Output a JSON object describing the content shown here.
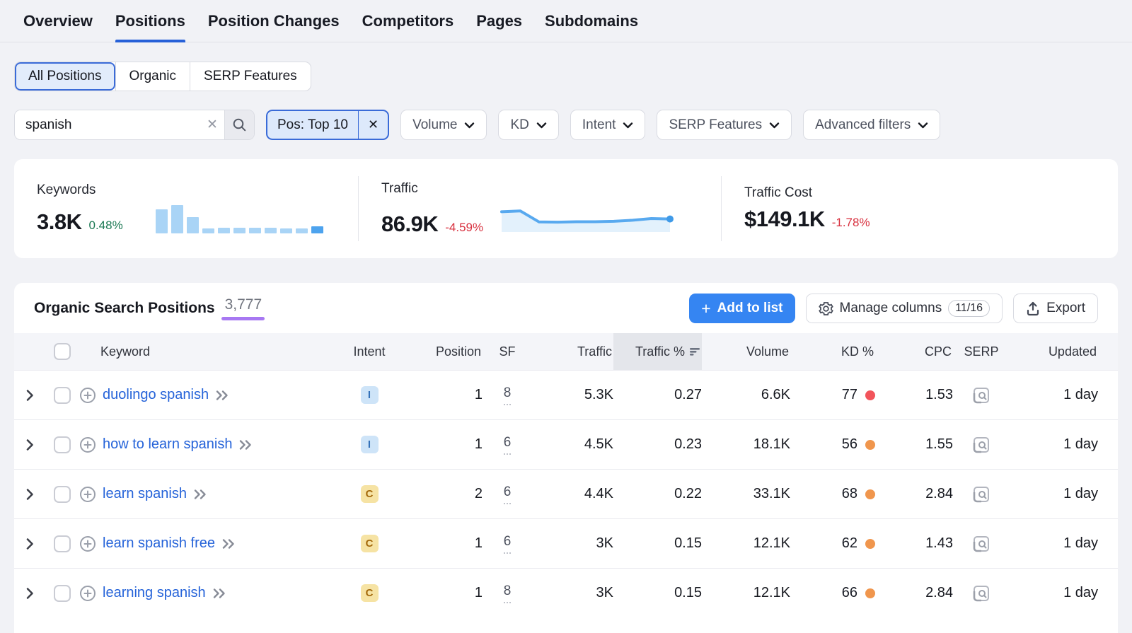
{
  "nav": {
    "tabs": [
      {
        "label": "Overview",
        "active": false
      },
      {
        "label": "Positions",
        "active": true
      },
      {
        "label": "Position Changes",
        "active": false
      },
      {
        "label": "Competitors",
        "active": false
      },
      {
        "label": "Pages",
        "active": false
      },
      {
        "label": "Subdomains",
        "active": false
      }
    ]
  },
  "segmented": {
    "selected": "All Positions",
    "options": [
      "All Positions",
      "Organic",
      "SERP Features"
    ]
  },
  "filters": {
    "search": {
      "value": "spanish"
    },
    "chip": {
      "label": "Pos: Top 10"
    },
    "dropdowns": [
      "Volume",
      "KD",
      "Intent",
      "SERP Features",
      "Advanced filters"
    ]
  },
  "stats": {
    "keywords": {
      "label": "Keywords",
      "value": "3.8K",
      "change": "0.48%",
      "direction": "up"
    },
    "traffic": {
      "label": "Traffic",
      "value": "86.9K",
      "change": "-4.59%",
      "direction": "down"
    },
    "traffic_cost": {
      "label": "Traffic Cost",
      "value": "$149.1K",
      "change": "-1.78%",
      "direction": "down"
    }
  },
  "chart_data": [
    {
      "id": "keywords-trend",
      "type": "bar",
      "values": [
        0.85,
        1.0,
        0.58,
        0.17,
        0.2,
        0.2,
        0.2,
        0.2,
        0.17,
        0.17,
        0.24
      ],
      "bar_color": "#a9d4f6",
      "last_bar_color": "#4da3ee",
      "title": "",
      "xlabel": "",
      "ylabel": "",
      "axes_shown": false
    },
    {
      "id": "traffic-trend",
      "type": "area",
      "values": [
        0.82,
        0.86,
        0.34,
        0.33,
        0.35,
        0.35,
        0.37,
        0.42,
        0.5,
        0.48
      ],
      "line_color": "#58a9ef",
      "fill_color": "#e3f1fc",
      "endpoint_dot": true,
      "title": "",
      "xlabel": "",
      "ylabel": "",
      "axes_shown": false
    }
  ],
  "table": {
    "title": "Organic Search Positions",
    "count": "3,777",
    "actions": {
      "add_to_list": "Add to list",
      "manage_columns": "Manage columns",
      "columns_badge": "11/16",
      "export": "Export"
    },
    "headers": [
      "Keyword",
      "Intent",
      "Position",
      "SF",
      "Traffic",
      "Traffic %",
      "Volume",
      "KD %",
      "CPC",
      "SERP",
      "Updated"
    ],
    "sorted_column": "Traffic %",
    "rows": [
      {
        "keyword": "duolingo spanish",
        "intent": {
          "label": "I",
          "bg": "#cee4f8",
          "fg": "#3572b9"
        },
        "position": "1",
        "sf": "8",
        "traffic": "5.3K",
        "traffic_pct": "0.27",
        "volume": "6.6K",
        "kd": "77",
        "kd_color": "#f2545b",
        "cpc": "1.53",
        "updated": "1 day"
      },
      {
        "keyword": "how to learn spanish",
        "intent": {
          "label": "I",
          "bg": "#cee4f8",
          "fg": "#3572b9"
        },
        "position": "1",
        "sf": "6",
        "traffic": "4.5K",
        "traffic_pct": "0.23",
        "volume": "18.1K",
        "kd": "56",
        "kd_color": "#f0964d",
        "cpc": "1.55",
        "updated": "1 day"
      },
      {
        "keyword": "learn spanish",
        "intent": {
          "label": "C",
          "bg": "#f6e3a4",
          "fg": "#a4690b"
        },
        "position": "2",
        "sf": "6",
        "traffic": "4.4K",
        "traffic_pct": "0.22",
        "volume": "33.1K",
        "kd": "68",
        "kd_color": "#f0964d",
        "cpc": "2.84",
        "updated": "1 day"
      },
      {
        "keyword": "learn spanish free",
        "intent": {
          "label": "C",
          "bg": "#f6e3a4",
          "fg": "#a4690b"
        },
        "position": "1",
        "sf": "6",
        "traffic": "3K",
        "traffic_pct": "0.15",
        "volume": "12.1K",
        "kd": "62",
        "kd_color": "#f0964d",
        "cpc": "1.43",
        "updated": "1 day"
      },
      {
        "keyword": "learning spanish",
        "intent": {
          "label": "C",
          "bg": "#f6e3a4",
          "fg": "#a4690b"
        },
        "position": "1",
        "sf": "8",
        "traffic": "3K",
        "traffic_pct": "0.15",
        "volume": "12.1K",
        "kd": "66",
        "kd_color": "#f0964d",
        "cpc": "2.84",
        "updated": "1 day"
      }
    ]
  }
}
